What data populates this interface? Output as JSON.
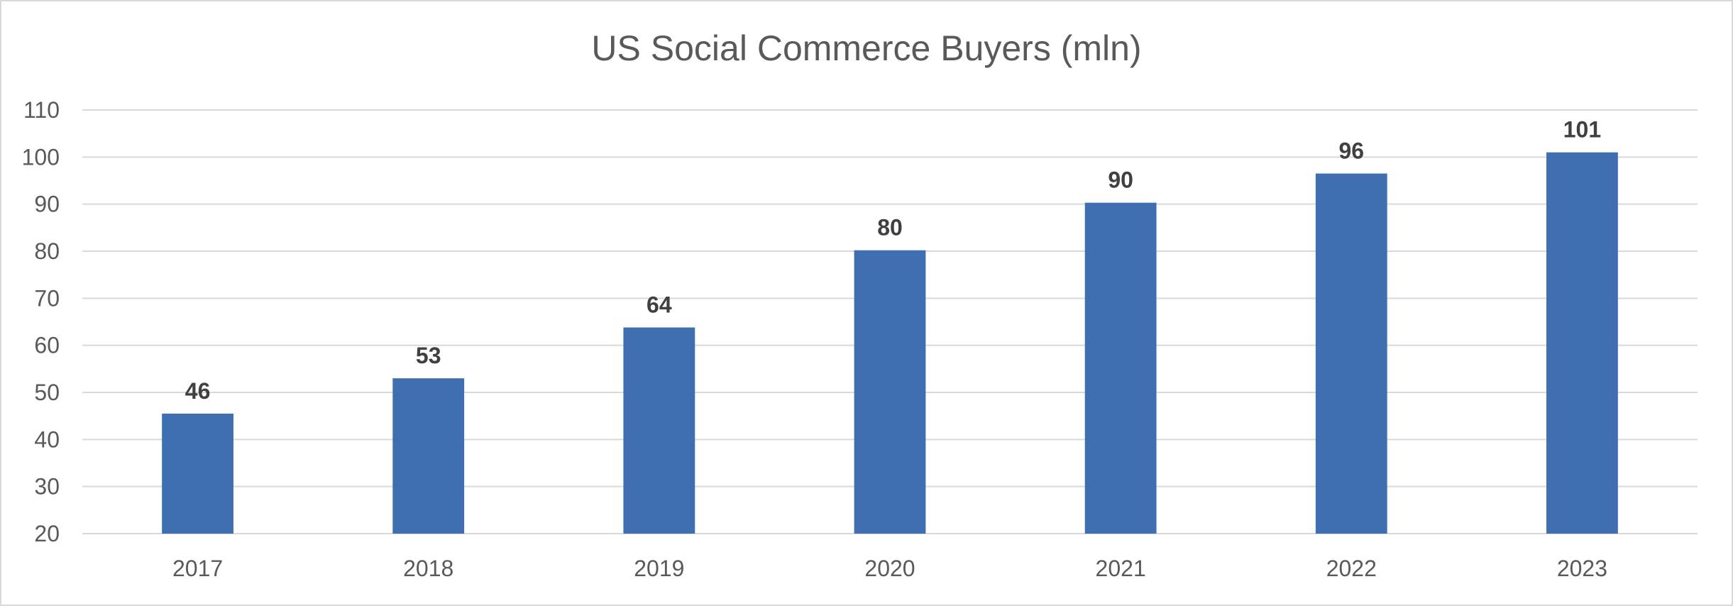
{
  "chart_data": {
    "type": "bar",
    "title": "US Social Commerce Buyers (mln)",
    "xlabel": "",
    "ylabel": "",
    "categories": [
      "2017",
      "2018",
      "2019",
      "2020",
      "2021",
      "2022",
      "2023"
    ],
    "values": [
      45.5,
      53,
      63.8,
      80.2,
      90.3,
      96.5,
      101
    ],
    "data_labels": [
      "46",
      "53",
      "64",
      "80",
      "90",
      "96",
      "101"
    ],
    "ylim": [
      20,
      110
    ],
    "yticks": [
      20,
      30,
      40,
      50,
      60,
      70,
      80,
      90,
      100,
      110
    ],
    "grid": true,
    "legend": "none",
    "colors": {
      "bar": "#3f6fb1",
      "grid": "#d9d9d9",
      "text": "#595959",
      "label": "#404040"
    }
  }
}
